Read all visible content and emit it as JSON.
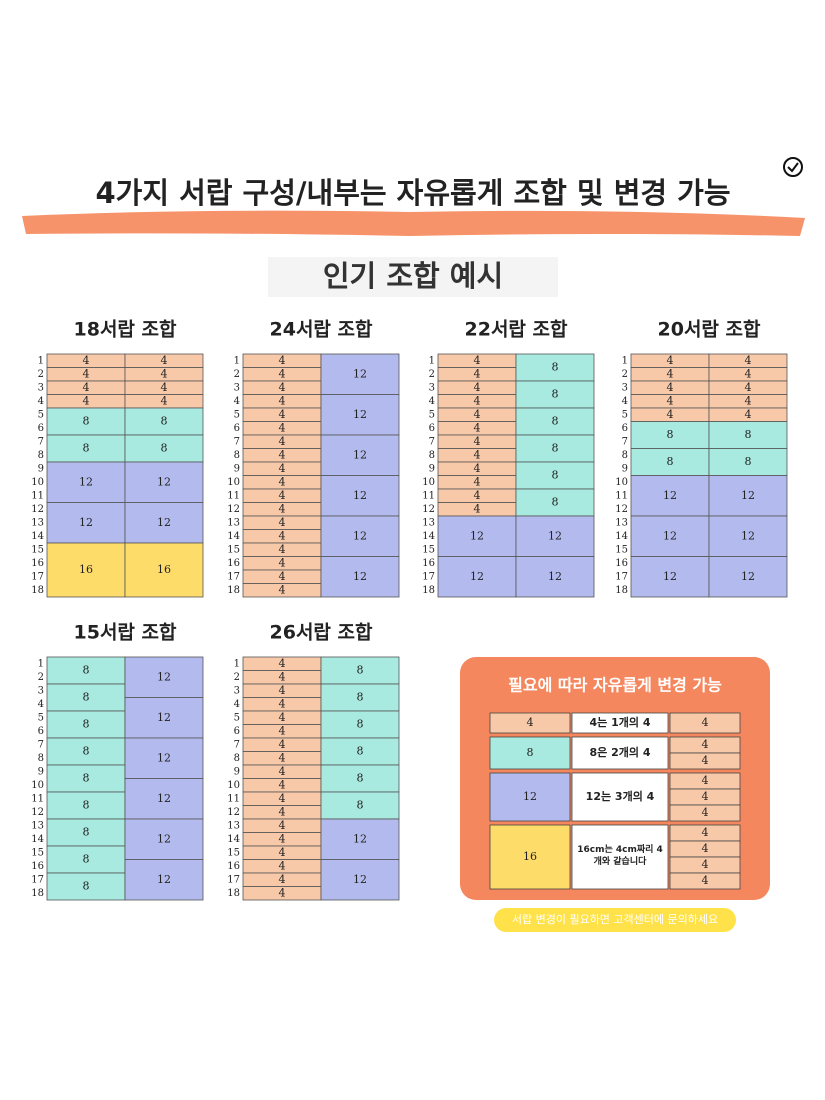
{
  "title": "4가지 서랍 구성/내부는 자유롭게 조합 및 변경 가능",
  "subtitle": "인기 조합 예시",
  "row_labels": [
    1,
    2,
    3,
    4,
    5,
    6,
    7,
    8,
    9,
    10,
    11,
    12,
    13,
    14,
    15,
    16,
    17,
    18
  ],
  "size_colors": {
    "4": "#f8c9a8",
    "8": "#a8eadf",
    "12": "#b3bbee",
    "16": "#fddc6a"
  },
  "combos": [
    {
      "title": "18서랍 조합",
      "columns": [
        [
          4,
          4,
          4,
          4,
          8,
          8,
          12,
          12,
          16
        ],
        [
          4,
          4,
          4,
          4,
          8,
          8,
          12,
          12,
          16
        ]
      ]
    },
    {
      "title": "24서랍 조합",
      "columns": [
        [
          4,
          4,
          4,
          4,
          4,
          4,
          4,
          4,
          4,
          4,
          4,
          4,
          4,
          4,
          4,
          4,
          4,
          4
        ],
        [
          12,
          12,
          12,
          12,
          12,
          12
        ]
      ]
    },
    {
      "title": "22서랍 조합",
      "columns": [
        [
          4,
          4,
          4,
          4,
          4,
          4,
          4,
          4,
          4,
          4,
          4,
          4,
          12,
          12
        ],
        [
          8,
          8,
          8,
          8,
          8,
          8,
          12,
          12
        ]
      ]
    },
    {
      "title": "20서랍 조합",
      "columns": [
        [
          4,
          4,
          4,
          4,
          4,
          8,
          8,
          12,
          12,
          12
        ],
        [
          4,
          4,
          4,
          4,
          4,
          8,
          8,
          12,
          12,
          12
        ]
      ]
    },
    {
      "title": "15서랍 조합",
      "columns": [
        [
          8,
          8,
          8,
          8,
          8,
          8,
          8,
          8,
          8
        ],
        [
          12,
          12,
          12,
          12,
          12,
          12
        ]
      ]
    },
    {
      "title": "26서랍 조합",
      "columns": [
        [
          4,
          4,
          4,
          4,
          4,
          4,
          4,
          4,
          4,
          4,
          4,
          4,
          4,
          4,
          4,
          4,
          4,
          4
        ],
        [
          8,
          8,
          8,
          8,
          8,
          8,
          12,
          12
        ]
      ]
    }
  ],
  "guide": {
    "title": "필요에 따라 자유롭게 변경 가능",
    "rows": [
      {
        "size": 4,
        "text": "4는 1개의 4",
        "parts": [
          4
        ]
      },
      {
        "size": 8,
        "text": "8은 2개의 4",
        "parts": [
          4,
          4
        ]
      },
      {
        "size": 12,
        "text": "12는 3개의 4",
        "parts": [
          4,
          4,
          4
        ]
      },
      {
        "size": 16,
        "text": "16cm는 4cm짜리 4개와 같습니다",
        "parts": [
          4,
          4,
          4,
          4
        ]
      }
    ]
  },
  "footer": "서랍 변경이 필요하면 고객센터에 문의하세요"
}
